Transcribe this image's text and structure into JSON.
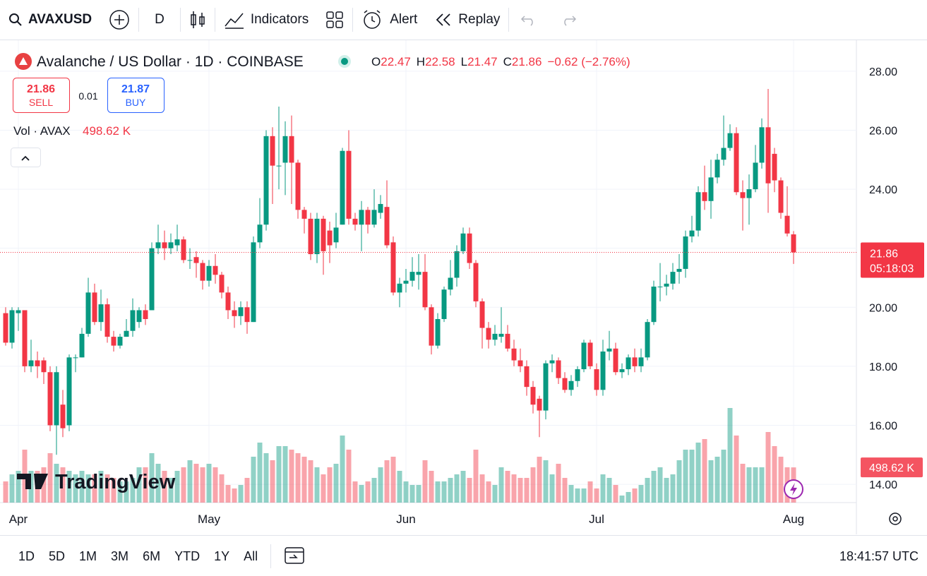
{
  "toolbar": {
    "symbol": "AVAXUSD",
    "interval": "D",
    "indicators": "Indicators",
    "alert": "Alert",
    "replay": "Replay"
  },
  "legend": {
    "title": "Avalanche / US Dollar · 1D · COINBASE",
    "open_label": "O",
    "open": "22.47",
    "high_label": "H",
    "high": "22.58",
    "low_label": "L",
    "low": "21.47",
    "close_label": "C",
    "close": "21.86",
    "change": "−0.62 (−2.76%)"
  },
  "trade": {
    "sell_price": "21.86",
    "sell": "SELL",
    "spread": "0.01",
    "buy_price": "21.87",
    "buy": "BUY"
  },
  "chart_data": {
    "type": "candlestick",
    "up_color": "#089981",
    "down_color": "#f23645",
    "open": [
      19.8,
      18.8,
      19.8,
      19.9,
      18.0,
      18.2,
      18.2,
      17.8,
      16.0,
      16.7,
      16.0,
      18.3,
      18.3,
      19.1,
      20.5,
      19.5,
      20.1,
      19.0,
      18.7,
      19.0,
      19.2,
      19.5,
      19.9,
      19.9,
      22.0,
      22.2,
      22.0,
      22.1,
      22.3,
      21.6,
      21.7,
      21.5,
      20.9,
      21.4,
      21.1,
      20.5,
      19.9,
      19.7,
      20.0,
      19.5,
      22.2,
      22.8,
      25.8,
      24.8,
      24.9,
      25.8,
      24.9,
      23.3,
      23.0,
      21.8,
      23.0,
      22.6,
      22.2,
      22.8,
      25.3,
      23.0,
      22.8,
      23.3,
      22.8,
      23.2,
      23.4,
      22.2,
      20.5,
      20.8,
      20.9,
      21.1,
      21.2,
      20.0,
      18.7,
      19.6,
      20.6,
      21.0,
      21.9,
      22.5,
      21.5,
      20.2,
      19.3,
      18.9,
      19.0,
      19.1,
      18.6,
      18.2,
      18.0,
      17.3,
      16.9,
      16.5,
      18.1,
      18.2,
      17.6,
      17.2,
      17.5,
      17.9,
      18.8,
      17.9,
      17.2,
      18.5,
      18.6,
      17.8,
      17.9,
      18.3,
      18.0,
      18.3,
      19.5,
      20.7,
      20.7,
      20.8,
      21.2,
      21.3,
      22.4,
      22.6,
      23.9,
      23.6,
      24.4,
      25.0,
      25.4,
      25.9,
      23.9,
      23.7,
      24.0,
      24.9,
      26.1,
      25.2,
      24.3,
      23.1,
      22.47
    ],
    "high": [
      20.0,
      20.0,
      20.0,
      19.9,
      18.9,
      18.5,
      18.3,
      18.0,
      18.0,
      17.2,
      18.4,
      18.4,
      19.3,
      21.0,
      20.8,
      20.6,
      20.3,
      19.2,
      19.1,
      19.6,
      20.3,
      20.0,
      20.1,
      22.2,
      22.8,
      22.6,
      22.5,
      22.8,
      22.4,
      22.0,
      21.9,
      21.6,
      21.6,
      21.8,
      21.2,
      20.7,
      20.2,
      20.2,
      20.2,
      22.4,
      23.7,
      26.0,
      26.1,
      26.8,
      26.3,
      26.5,
      25.0,
      23.4,
      23.2,
      23.2,
      23.1,
      22.9,
      23.2,
      25.4,
      26.0,
      23.2,
      23.6,
      23.4,
      24.0,
      23.8,
      24.3,
      22.4,
      21.0,
      21.3,
      21.7,
      21.8,
      21.8,
      20.1,
      19.8,
      20.7,
      21.6,
      22.1,
      22.7,
      22.7,
      21.6,
      20.3,
      19.5,
      19.4,
      20.0,
      19.4,
      18.9,
      18.6,
      18.2,
      17.5,
      17.0,
      18.2,
      18.4,
      18.3,
      17.8,
      17.7,
      18.0,
      18.9,
      18.9,
      18.1,
      18.9,
      19.2,
      18.8,
      18.1,
      18.4,
      18.6,
      18.6,
      19.6,
      20.9,
      21.5,
      21.1,
      21.5,
      21.8,
      22.6,
      23.1,
      24.1,
      24.8,
      25.0,
      25.2,
      26.5,
      26.2,
      26.1,
      24.3,
      24.5,
      25.5,
      26.4,
      27.4,
      25.4,
      24.4,
      24.1,
      22.58
    ],
    "low": [
      18.7,
      18.6,
      19.2,
      17.8,
      17.8,
      17.6,
      17.4,
      15.8,
      15.0,
      15.6,
      15.8,
      17.8,
      18.3,
      19.0,
      19.4,
      19.2,
      18.8,
      18.5,
      18.6,
      19.0,
      19.0,
      19.3,
      19.4,
      19.9,
      21.8,
      21.6,
      21.8,
      21.9,
      21.5,
      21.3,
      21.0,
      20.6,
      20.7,
      20.8,
      20.3,
      19.6,
      19.3,
      19.4,
      19.1,
      19.5,
      22.0,
      22.6,
      23.5,
      24.0,
      23.8,
      23.5,
      23.0,
      22.5,
      21.6,
      21.5,
      21.1,
      21.5,
      22.0,
      22.8,
      22.8,
      22.6,
      21.9,
      22.5,
      22.7,
      23.0,
      22.0,
      20.4,
      20.0,
      20.5,
      20.7,
      20.6,
      19.9,
      18.4,
      18.6,
      19.5,
      20.4,
      20.7,
      21.8,
      21.3,
      20.0,
      18.6,
      18.6,
      18.7,
      18.8,
      18.5,
      18.0,
      17.8,
      17.0,
      16.4,
      15.6,
      16.2,
      17.8,
      17.4,
      17.1,
      17.0,
      17.3,
      17.8,
      17.9,
      17.0,
      17.0,
      18.2,
      17.7,
      17.6,
      17.7,
      17.8,
      17.8,
      18.2,
      19.4,
      20.2,
      20.4,
      20.6,
      20.8,
      21.0,
      22.2,
      22.4,
      23.3,
      23.0,
      24.2,
      24.8,
      25.3,
      23.8,
      22.6,
      22.8,
      23.9,
      24.7,
      23.2,
      23.9,
      23.0,
      22.4,
      21.47
    ],
    "close": [
      18.8,
      19.9,
      19.9,
      18.0,
      18.2,
      18.0,
      17.8,
      16.0,
      17.8,
      15.9,
      18.3,
      18.3,
      19.1,
      20.5,
      19.5,
      20.1,
      19.0,
      18.7,
      19.0,
      19.2,
      19.9,
      19.9,
      19.6,
      22.0,
      22.2,
      22.0,
      22.2,
      22.3,
      21.6,
      21.6,
      21.5,
      20.9,
      21.4,
      21.1,
      20.5,
      19.9,
      19.7,
      20.0,
      19.5,
      22.2,
      22.8,
      25.8,
      24.8,
      24.8,
      25.8,
      24.9,
      23.3,
      23.0,
      21.8,
      23.0,
      21.9,
      22.1,
      22.7,
      25.3,
      23.0,
      22.8,
      23.3,
      22.8,
      23.3,
      23.5,
      22.1,
      20.5,
      20.8,
      20.9,
      21.2,
      21.2,
      20.0,
      18.7,
      19.6,
      20.6,
      21.0,
      21.9,
      22.5,
      21.5,
      20.2,
      19.3,
      18.9,
      19.1,
      19.1,
      18.6,
      18.2,
      18.0,
      17.3,
      16.7,
      16.5,
      18.1,
      18.2,
      17.6,
      17.2,
      17.5,
      17.9,
      18.8,
      18.0,
      17.2,
      18.5,
      18.6,
      17.8,
      17.9,
      18.3,
      18.0,
      18.3,
      19.5,
      20.7,
      20.7,
      20.8,
      21.2,
      21.3,
      22.4,
      22.6,
      23.9,
      23.6,
      24.4,
      25.0,
      25.4,
      25.9,
      23.9,
      23.7,
      24.0,
      24.9,
      26.1,
      24.2,
      24.3,
      23.2,
      22.5,
      21.86
    ],
    "volume": {
      "name": "Vol · AVAX",
      "last_label": "498.62 K",
      "values": [
        300,
        400,
        450,
        750,
        450,
        450,
        500,
        700,
        550,
        500,
        450,
        400,
        450,
        400,
        400,
        450,
        400,
        350,
        300,
        300,
        350,
        500,
        500,
        700,
        550,
        450,
        350,
        450,
        500,
        600,
        550,
        500,
        550,
        500,
        400,
        250,
        200,
        250,
        350,
        650,
        850,
        700,
        600,
        800,
        800,
        750,
        700,
        650,
        600,
        500,
        400,
        500,
        550,
        950,
        750,
        300,
        250,
        300,
        350,
        500,
        600,
        650,
        450,
        300,
        250,
        250,
        600,
        450,
        300,
        300,
        350,
        400,
        450,
        350,
        750,
        400,
        300,
        250,
        500,
        450,
        400,
        350,
        350,
        500,
        650,
        600,
        400,
        550,
        350,
        250,
        200,
        200,
        300,
        200,
        400,
        350,
        250,
        100,
        150,
        200,
        250,
        350,
        450,
        500,
        350,
        400,
        600,
        750,
        750,
        850,
        900,
        600,
        650,
        750,
        1340,
        950,
        550,
        500,
        500,
        500,
        1000,
        800,
        650,
        500,
        498.62
      ]
    },
    "ylim": [
      13.38,
      28.93
    ],
    "yticks": [
      {
        "value": 14,
        "label": "14.00"
      },
      {
        "value": 16,
        "label": "16.00"
      },
      {
        "value": 18,
        "label": "18.00"
      },
      {
        "value": 20,
        "label": "20.00"
      },
      {
        "value": 22,
        "label": "22.00"
      },
      {
        "value": 24,
        "label": "24.00"
      },
      {
        "value": 26,
        "label": "26.00"
      },
      {
        "value": 28,
        "label": "28.00"
      }
    ],
    "xticks": [
      {
        "value": 2,
        "label": "Apr"
      },
      {
        "value": 32,
        "label": "May"
      },
      {
        "value": 63,
        "label": "Jun"
      },
      {
        "value": 93,
        "label": "Jul"
      },
      {
        "value": 124,
        "label": "Aug"
      }
    ],
    "grid": true,
    "last_price_label": "21.86",
    "countdown": "05:18:03",
    "watermark": "TradingView"
  },
  "bottom": {
    "ranges": [
      "1D",
      "5D",
      "1M",
      "3M",
      "6M",
      "YTD",
      "1Y",
      "All"
    ],
    "clock": "18:41:57 UTC"
  }
}
